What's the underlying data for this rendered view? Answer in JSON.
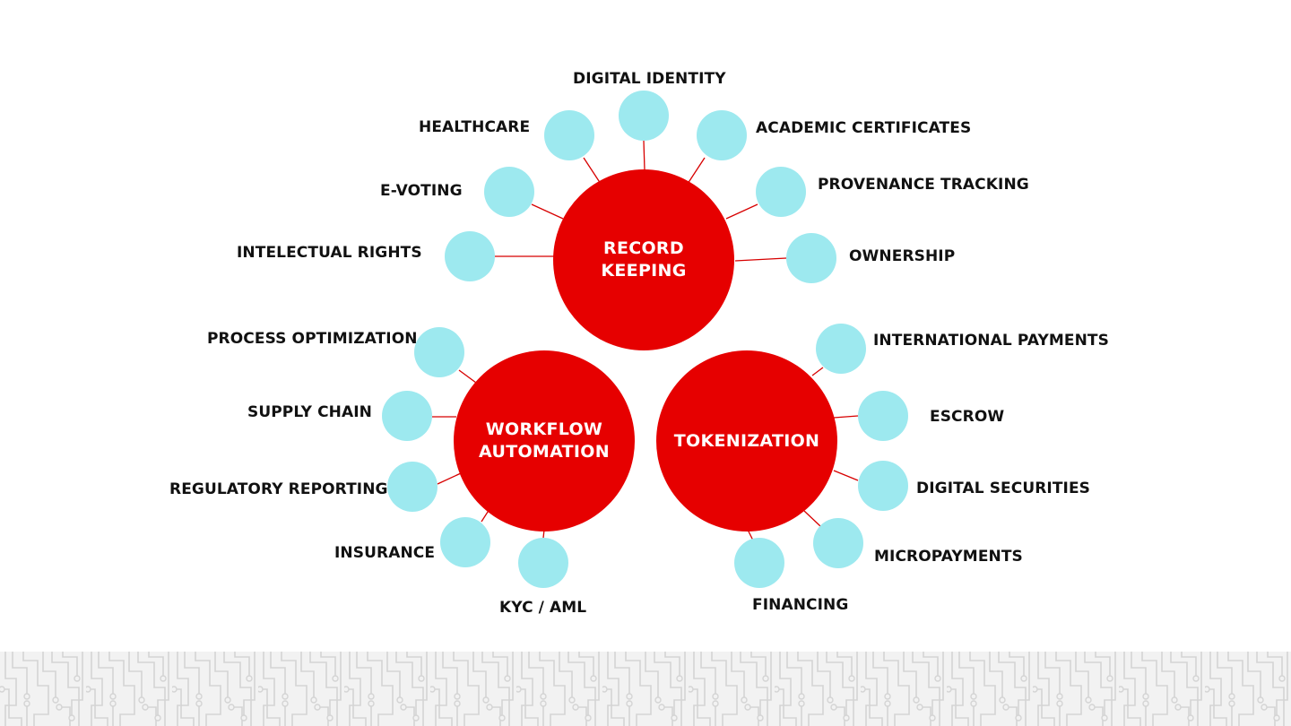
{
  "colors": {
    "hub": "#e60000",
    "node": "#9de9ef",
    "connector": "#d70000",
    "label": "#111111",
    "footer_bg": "#f2f2f2",
    "footer_pattern": "#d9d9d9"
  },
  "hubs": {
    "record_keeping": "RECORD\nKEEPING",
    "workflow_automation": "WORKFLOW\nAUTOMATION",
    "tokenization": "TOKENIZATION"
  },
  "record_keeping_items": {
    "digital_identity": "DIGITAL IDENTITY",
    "healthcare": "HEALTHCARE",
    "academic_certificates": "ACADEMIC CERTIFICATES",
    "e_voting": "E-VOTING",
    "provenance_tracking": "PROVENANCE TRACKING",
    "intelectual_rights": "INTELECTUAL RIGHTS",
    "ownership": "OWNERSHIP"
  },
  "workflow_items": {
    "process_optimization": "PROCESS OPTIMIZATION",
    "supply_chain": "SUPPLY CHAIN",
    "regulatory_reporting": "REGULATORY REPORTING",
    "insurance": "INSURANCE",
    "kyc_aml": "KYC / AML"
  },
  "tokenization_items": {
    "international_payments": "INTERNATIONAL PAYMENTS",
    "escrow": "ESCROW",
    "digital_securities": "DIGITAL SECURITIES",
    "micropayments": "MICROPAYMENTS",
    "financing": "FINANCING"
  }
}
